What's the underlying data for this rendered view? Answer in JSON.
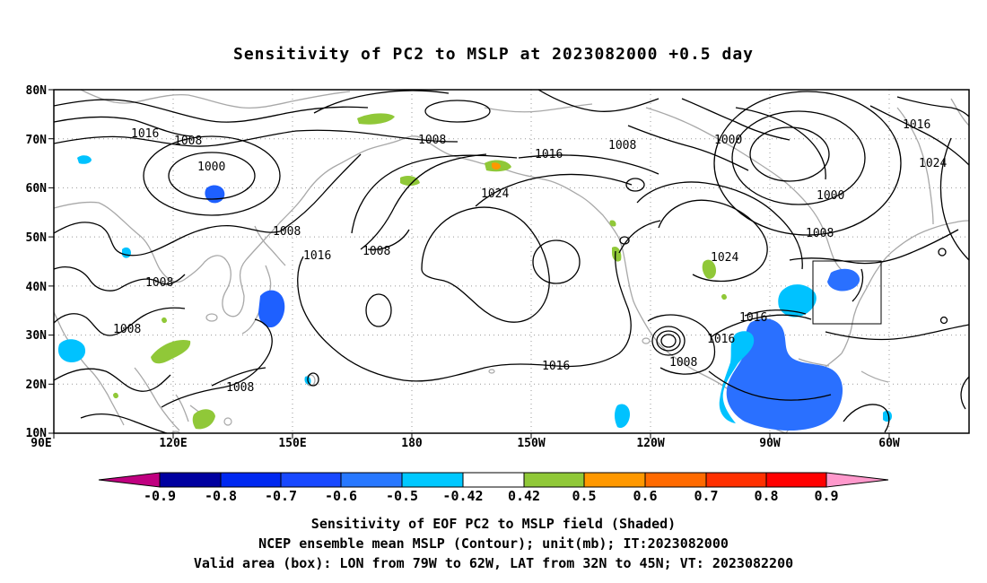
{
  "title": "Sensitivity of PC2 to MSLP at 2023082000 +0.5 day",
  "map": {
    "lat_labels": [
      "80N",
      "70N",
      "60N",
      "50N",
      "40N",
      "30N",
      "20N",
      "10N"
    ],
    "lon_labels": [
      "90E",
      "120E",
      "150E",
      "180",
      "150W",
      "120W",
      "90W",
      "60W"
    ],
    "contour_labels": [
      {
        "text": "1016",
        "n": "c-1016-a"
      },
      {
        "text": "1008",
        "n": "c-1008-a"
      },
      {
        "text": "1000",
        "n": "c-1000-a"
      },
      {
        "text": "1008",
        "n": "c-1008-b"
      },
      {
        "text": "1016",
        "n": "c-1016-b"
      },
      {
        "text": "1008",
        "n": "c-1008-c"
      },
      {
        "text": "1008",
        "n": "c-1008-d"
      },
      {
        "text": "1008",
        "n": "c-1008-e"
      },
      {
        "text": "1008",
        "n": "c-1008-f"
      },
      {
        "text": "1016",
        "n": "c-1016-c"
      },
      {
        "text": "1024",
        "n": "c-1024-a"
      },
      {
        "text": "1008",
        "n": "c-1008-g"
      },
      {
        "text": "1016",
        "n": "c-1016-d"
      },
      {
        "text": "1000",
        "n": "c-1000-b"
      },
      {
        "text": "1000",
        "n": "c-1000-c"
      },
      {
        "text": "1008",
        "n": "c-1008-h"
      },
      {
        "text": "1016",
        "n": "c-1016-e"
      },
      {
        "text": "1024",
        "n": "c-1024-b"
      },
      {
        "text": "1024",
        "n": "c-1024-c"
      },
      {
        "text": "1016",
        "n": "c-1016-f"
      },
      {
        "text": "1016",
        "n": "c-1016-g"
      },
      {
        "text": "1008",
        "n": "c-1008-i"
      }
    ],
    "valid_box": {
      "lon_from": "79W",
      "lon_to": "62W",
      "lat_from": "32N",
      "lat_to": "45N"
    }
  },
  "colorbar": {
    "labels": [
      "-0.9",
      "-0.8",
      "-0.7",
      "-0.6",
      "-0.5",
      "-0.42",
      "0.42",
      "0.5",
      "0.6",
      "0.7",
      "0.8",
      "0.9"
    ],
    "colors": [
      "#c00080",
      "#0000a0",
      "#0028f0",
      "#1848ff",
      "#2878ff",
      "#00b8ff",
      "#00d8ff",
      "#ffffff",
      "#90c838",
      "#ff9800",
      "#ff6a00",
      "#ff3000",
      "#ff0000",
      "#ff99cc"
    ]
  },
  "captions": [
    "Sensitivity of EOF PC2 to MSLP field (Shaded)",
    "NCEP ensemble mean MSLP (Contour); unit(mb); IT:2023082000",
    "Valid area (box): LON from 79W to 62W, LAT from 32N to 45N; VT: 2023082200"
  ]
}
